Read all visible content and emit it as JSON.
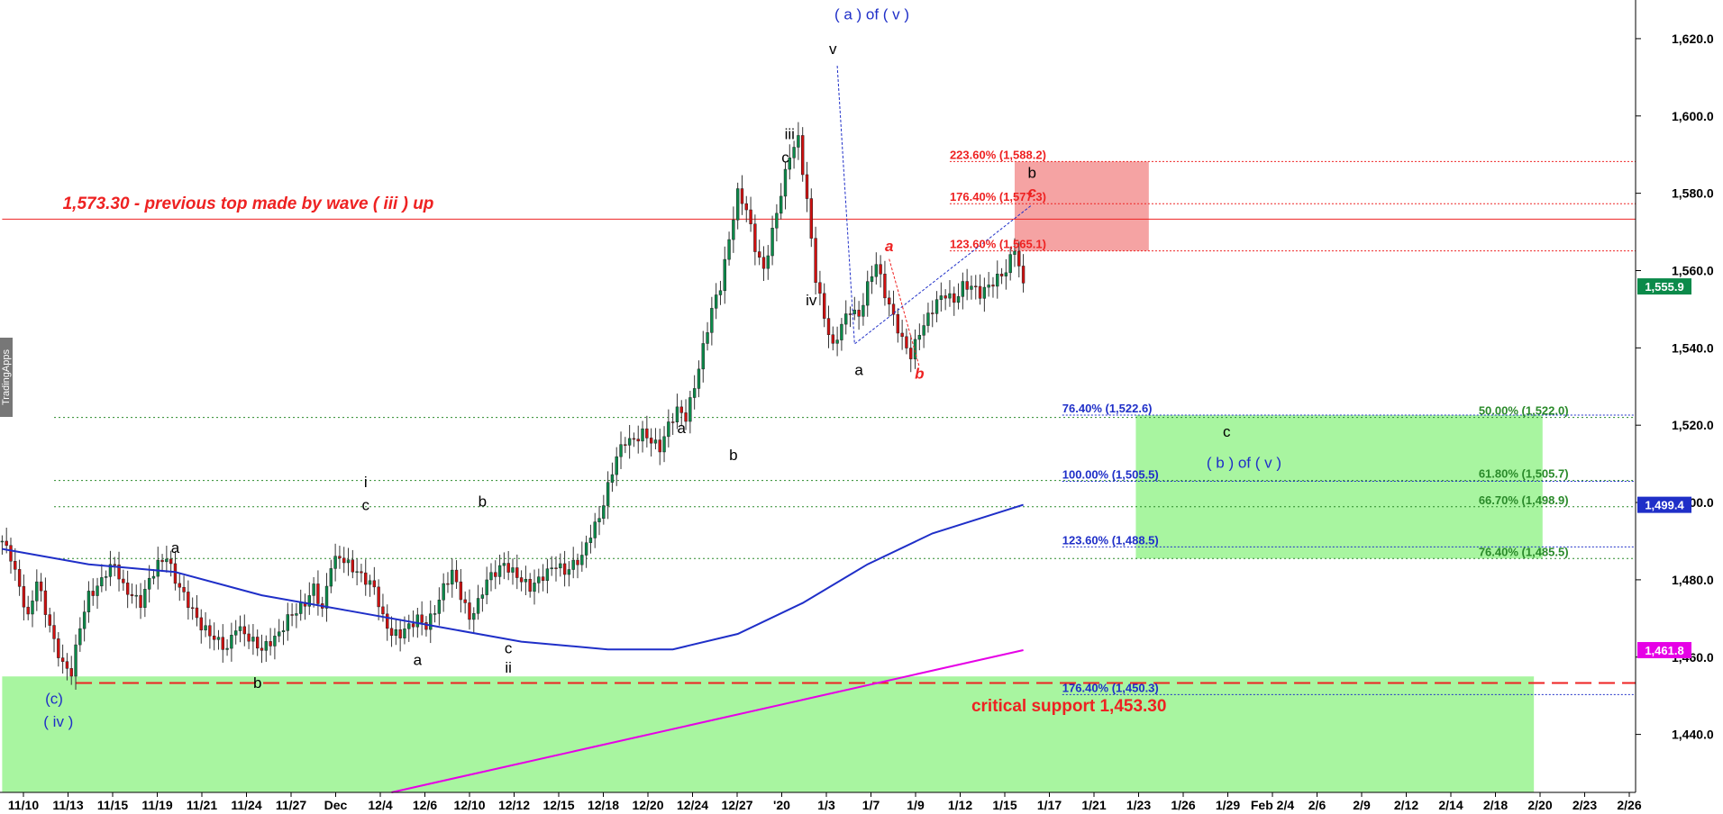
{
  "watermark": "TradingApps",
  "chart_data": {
    "type": "candlestick",
    "title": "",
    "xlabel": "",
    "ylabel": "",
    "ylim": [
      1425,
      1630
    ],
    "y_ticks": [
      {
        "value": 1620,
        "label": "1,620.0"
      },
      {
        "value": 1600,
        "label": "1,600.0"
      },
      {
        "value": 1580,
        "label": "1,580.0"
      },
      {
        "value": 1560,
        "label": "1,560.0"
      },
      {
        "value": 1540,
        "label": "1,540.0"
      },
      {
        "value": 1520,
        "label": "1,520.0"
      },
      {
        "value": 1500,
        "label": "1,500.0"
      },
      {
        "value": 1480,
        "label": "1,480.0"
      },
      {
        "value": 1460,
        "label": "1,460.0"
      },
      {
        "value": 1440,
        "label": "1,440.0"
      }
    ],
    "x_ticks": [
      "11/10",
      "11/13",
      "11/15",
      "11/19",
      "11/21",
      "11/24",
      "11/27",
      "Dec",
      "12/4",
      "12/6",
      "12/10",
      "12/12",
      "12/15",
      "12/18",
      "12/20",
      "12/24",
      "12/27",
      "'20",
      "1/3",
      "1/7",
      "1/9",
      "1/12",
      "1/15",
      "1/17",
      "1/21",
      "1/23",
      "1/26",
      "1/29",
      "Feb 2/4",
      "2/6",
      "2/9",
      "2/12",
      "2/14",
      "2/18",
      "2/20",
      "2/23",
      "2/26"
    ],
    "price_path": [
      [
        0,
        1490
      ],
      [
        2,
        1486
      ],
      [
        4,
        1478
      ],
      [
        6,
        1470
      ],
      [
        8,
        1480
      ],
      [
        10,
        1472
      ],
      [
        12,
        1464
      ],
      [
        14,
        1458
      ],
      [
        16,
        1456
      ],
      [
        18,
        1468
      ],
      [
        20,
        1476
      ],
      [
        22,
        1478
      ],
      [
        24,
        1482
      ],
      [
        26,
        1484
      ],
      [
        28,
        1478
      ],
      [
        30,
        1476
      ],
      [
        32,
        1474
      ],
      [
        34,
        1480
      ],
      [
        36,
        1484
      ],
      [
        38,
        1486
      ],
      [
        40,
        1480
      ],
      [
        42,
        1476
      ],
      [
        44,
        1472
      ],
      [
        46,
        1468
      ],
      [
        48,
        1466
      ],
      [
        50,
        1464
      ],
      [
        52,
        1462
      ],
      [
        54,
        1468
      ],
      [
        56,
        1466
      ],
      [
        58,
        1464
      ],
      [
        60,
        1462
      ],
      [
        62,
        1464
      ],
      [
        64,
        1466
      ],
      [
        66,
        1470
      ],
      [
        68,
        1472
      ],
      [
        70,
        1474
      ],
      [
        72,
        1478
      ],
      [
        74,
        1472
      ],
      [
        76,
        1484
      ],
      [
        78,
        1486
      ],
      [
        80,
        1484
      ],
      [
        82,
        1482
      ],
      [
        84,
        1480
      ],
      [
        86,
        1478
      ],
      [
        88,
        1470
      ],
      [
        90,
        1466
      ],
      [
        92,
        1466
      ],
      [
        94,
        1468
      ],
      [
        96,
        1470
      ],
      [
        98,
        1468
      ],
      [
        100,
        1472
      ],
      [
        102,
        1478
      ],
      [
        104,
        1482
      ],
      [
        106,
        1476
      ],
      [
        108,
        1470
      ],
      [
        110,
        1474
      ],
      [
        112,
        1480
      ],
      [
        114,
        1482
      ],
      [
        116,
        1484
      ],
      [
        118,
        1482
      ],
      [
        120,
        1480
      ],
      [
        122,
        1478
      ],
      [
        124,
        1480
      ],
      [
        126,
        1482
      ],
      [
        128,
        1484
      ],
      [
        130,
        1482
      ],
      [
        132,
        1484
      ],
      [
        134,
        1486
      ],
      [
        136,
        1492
      ],
      [
        138,
        1496
      ],
      [
        140,
        1504
      ],
      [
        142,
        1512
      ],
      [
        144,
        1516
      ],
      [
        146,
        1516
      ],
      [
        148,
        1518
      ],
      [
        150,
        1516
      ],
      [
        152,
        1514
      ],
      [
        154,
        1520
      ],
      [
        156,
        1524
      ],
      [
        158,
        1522
      ],
      [
        160,
        1530
      ],
      [
        162,
        1540
      ],
      [
        164,
        1550
      ],
      [
        166,
        1556
      ],
      [
        168,
        1568
      ],
      [
        170,
        1580
      ],
      [
        172,
        1576
      ],
      [
        174,
        1566
      ],
      [
        176,
        1560
      ],
      [
        178,
        1570
      ],
      [
        180,
        1580
      ],
      [
        182,
        1590
      ],
      [
        184,
        1594
      ],
      [
        186,
        1578
      ],
      [
        188,
        1558
      ],
      [
        190,
        1548
      ],
      [
        192,
        1540
      ],
      [
        194,
        1546
      ],
      [
        196,
        1550
      ],
      [
        198,
        1548
      ],
      [
        200,
        1556
      ],
      [
        202,
        1562
      ],
      [
        204,
        1554
      ],
      [
        206,
        1548
      ],
      [
        208,
        1542
      ],
      [
        210,
        1538
      ],
      [
        212,
        1544
      ],
      [
        214,
        1548
      ],
      [
        216,
        1552
      ],
      [
        218,
        1554
      ],
      [
        220,
        1552
      ],
      [
        222,
        1556
      ],
      [
        224,
        1556
      ],
      [
        226,
        1554
      ],
      [
        228,
        1556
      ],
      [
        230,
        1558
      ],
      [
        232,
        1560
      ],
      [
        234,
        1566
      ],
      [
        236,
        1556
      ]
    ],
    "series": [
      {
        "name": "",
        "color": "#1f2fc8",
        "points": [
          [
            0,
            1488
          ],
          [
            20,
            1484
          ],
          [
            40,
            1482
          ],
          [
            60,
            1476
          ],
          [
            80,
            1472
          ],
          [
            100,
            1468
          ],
          [
            120,
            1464
          ],
          [
            140,
            1462
          ],
          [
            155,
            1462
          ],
          [
            170,
            1466
          ],
          [
            185,
            1474
          ],
          [
            200,
            1484
          ],
          [
            215,
            1492
          ],
          [
            236,
            1499.4
          ]
        ]
      },
      {
        "name": "",
        "color": "#e600e6",
        "points": [
          [
            90,
            1425
          ],
          [
            236,
            1461.8
          ]
        ]
      }
    ],
    "price_tags": [
      {
        "value": 1555.9,
        "label": "1,555.9",
        "color": "#0b8a4a"
      },
      {
        "value": 1499.4,
        "label": "1,499.4",
        "color": "#1f2fc8"
      },
      {
        "value": 1461.8,
        "label": "1,461.8",
        "color": "#e600e6"
      }
    ],
    "horizontal_lines": [
      {
        "value": 1573.3,
        "color": "#e22",
        "style": "solid",
        "start": 0
      },
      {
        "value": 1522.0,
        "color": "#2a8a2a",
        "style": "dotted",
        "start": 12
      },
      {
        "value": 1505.7,
        "color": "#2a8a2a",
        "style": "dotted",
        "start": 12
      },
      {
        "value": 1498.9,
        "color": "#2a8a2a",
        "style": "dotted",
        "start": 12
      },
      {
        "value": 1485.5,
        "color": "#2a8a2a",
        "style": "dotted",
        "start": 12
      },
      {
        "value": 1453.3,
        "color": "#e22",
        "style": "dashed",
        "start": 17
      }
    ],
    "zones": [
      {
        "name": "wave-c-target-zone",
        "from_x": 234,
        "to_x": 265,
        "y1": 1565.1,
        "y2": 1588.2,
        "color": "#f5a3a3"
      },
      {
        "name": "wave-b-target-zone",
        "from_x": 262,
        "to_x": 356,
        "y1": 1485.5,
        "y2": 1522.6,
        "color": "#a8f5a0"
      },
      {
        "name": "critical-support-zone",
        "from_x": 0,
        "to_x": 354,
        "y1": 1425,
        "y2": 1455,
        "color": "#a8f5a0"
      }
    ],
    "fib_levels": [
      {
        "label": "223.60% (1,588.2)",
        "value": 1588.2,
        "x": 219,
        "color": "#e22",
        "line_to": 378
      },
      {
        "label": "176.40% (1,577.3)",
        "value": 1577.3,
        "x": 219,
        "color": "#e22",
        "line_to": 378
      },
      {
        "label": "123.60% (1,565.1)",
        "value": 1565.1,
        "x": 219,
        "color": "#e22",
        "line_to": 378
      },
      {
        "label": "76.40% (1,522.6)",
        "value": 1522.6,
        "x": 245,
        "color": "#1f2fc8",
        "line_to": 378
      },
      {
        "label": "100.00% (1,505.5)",
        "value": 1505.5,
        "x": 245,
        "color": "#1f2fc8",
        "line_to": 378
      },
      {
        "label": "123.60% (1,488.5)",
        "value": 1488.5,
        "x": 245,
        "color": "#1f2fc8",
        "line_to": 378
      },
      {
        "label": "176.40% (1,450.3)",
        "value": 1450.3,
        "x": 245,
        "color": "#1f2fc8",
        "line_to": 378
      },
      {
        "label": "50.00% (1,522.0)",
        "value": 1522.0,
        "x": 362,
        "color": "#2a8a2a",
        "anchor": "end"
      },
      {
        "label": "61.80% (1,505.7)",
        "value": 1505.7,
        "x": 362,
        "color": "#2a8a2a",
        "anchor": "end"
      },
      {
        "label": "66.70% (1,498.9)",
        "value": 1498.9,
        "x": 362,
        "color": "#2a8a2a",
        "anchor": "end"
      },
      {
        "label": "76.40% (1,485.5)",
        "value": 1485.5,
        "x": 362,
        "color": "#2a8a2a",
        "anchor": "end"
      }
    ],
    "wave_labels": [
      {
        "text": "(c)",
        "x": 12,
        "value": 1448,
        "color": "#1f2fc8"
      },
      {
        "text": "( iv )",
        "x": 13,
        "value": 1442,
        "color": "#1f2fc8"
      },
      {
        "text": "b",
        "x": 59,
        "value": 1452,
        "color": "#000"
      },
      {
        "text": "a",
        "x": 40,
        "value": 1487,
        "color": "#000"
      },
      {
        "text": "i",
        "x": 84,
        "value": 1504,
        "color": "#000"
      },
      {
        "text": "c",
        "x": 84,
        "value": 1498,
        "color": "#000"
      },
      {
        "text": "a",
        "x": 96,
        "value": 1458,
        "color": "#000"
      },
      {
        "text": "b",
        "x": 111,
        "value": 1499,
        "color": "#000"
      },
      {
        "text": "c",
        "x": 117,
        "value": 1461,
        "color": "#000"
      },
      {
        "text": "ii",
        "x": 117,
        "value": 1456,
        "color": "#000"
      },
      {
        "text": "a",
        "x": 157,
        "value": 1518,
        "color": "#000"
      },
      {
        "text": "b",
        "x": 169,
        "value": 1511,
        "color": "#000"
      },
      {
        "text": "iii",
        "x": 182,
        "value": 1594,
        "color": "#000"
      },
      {
        "text": "c",
        "x": 181,
        "value": 1588,
        "color": "#000"
      },
      {
        "text": "iv",
        "x": 187,
        "value": 1551,
        "color": "#000"
      },
      {
        "text": "v",
        "x": 192,
        "value": 1616,
        "color": "#000"
      },
      {
        "text": "( a )  of ( v )",
        "x": 201,
        "value": 1625,
        "color": "#1f2fc8"
      },
      {
        "text": "a",
        "x": 198,
        "value": 1533,
        "color": "#000"
      },
      {
        "text": "a",
        "x": 205,
        "value": 1565,
        "color": "#e22",
        "italic": true
      },
      {
        "text": "b",
        "x": 212,
        "value": 1532,
        "color": "#e22",
        "italic": true
      },
      {
        "text": "b",
        "x": 238,
        "value": 1584,
        "color": "#000"
      },
      {
        "text": "c",
        "x": 238,
        "value": 1579,
        "color": "#e22",
        "italic": true
      },
      {
        "text": "c",
        "x": 283,
        "value": 1517,
        "color": "#000"
      },
      {
        "text": "( b )  of ( v )",
        "x": 287,
        "value": 1509,
        "color": "#1f2fc8"
      }
    ],
    "annotations": [
      {
        "text": "1,573.30 - previous top made by wave ( iii ) up",
        "x": 14,
        "value": 1576,
        "color": "#e22",
        "kind": "note"
      },
      {
        "text": "critical support 1,453.30",
        "x": 224,
        "value": 1446,
        "color": "#e22",
        "kind": "support"
      }
    ],
    "trend_lines": [
      {
        "points": [
          [
            193,
            1613
          ],
          [
            197,
            1541
          ],
          [
            238,
            1577
          ]
        ],
        "color": "#1f2fc8"
      },
      {
        "points": [
          [
            205,
            1563
          ],
          [
            212,
            1535
          ]
        ],
        "color": "#e22"
      }
    ]
  }
}
